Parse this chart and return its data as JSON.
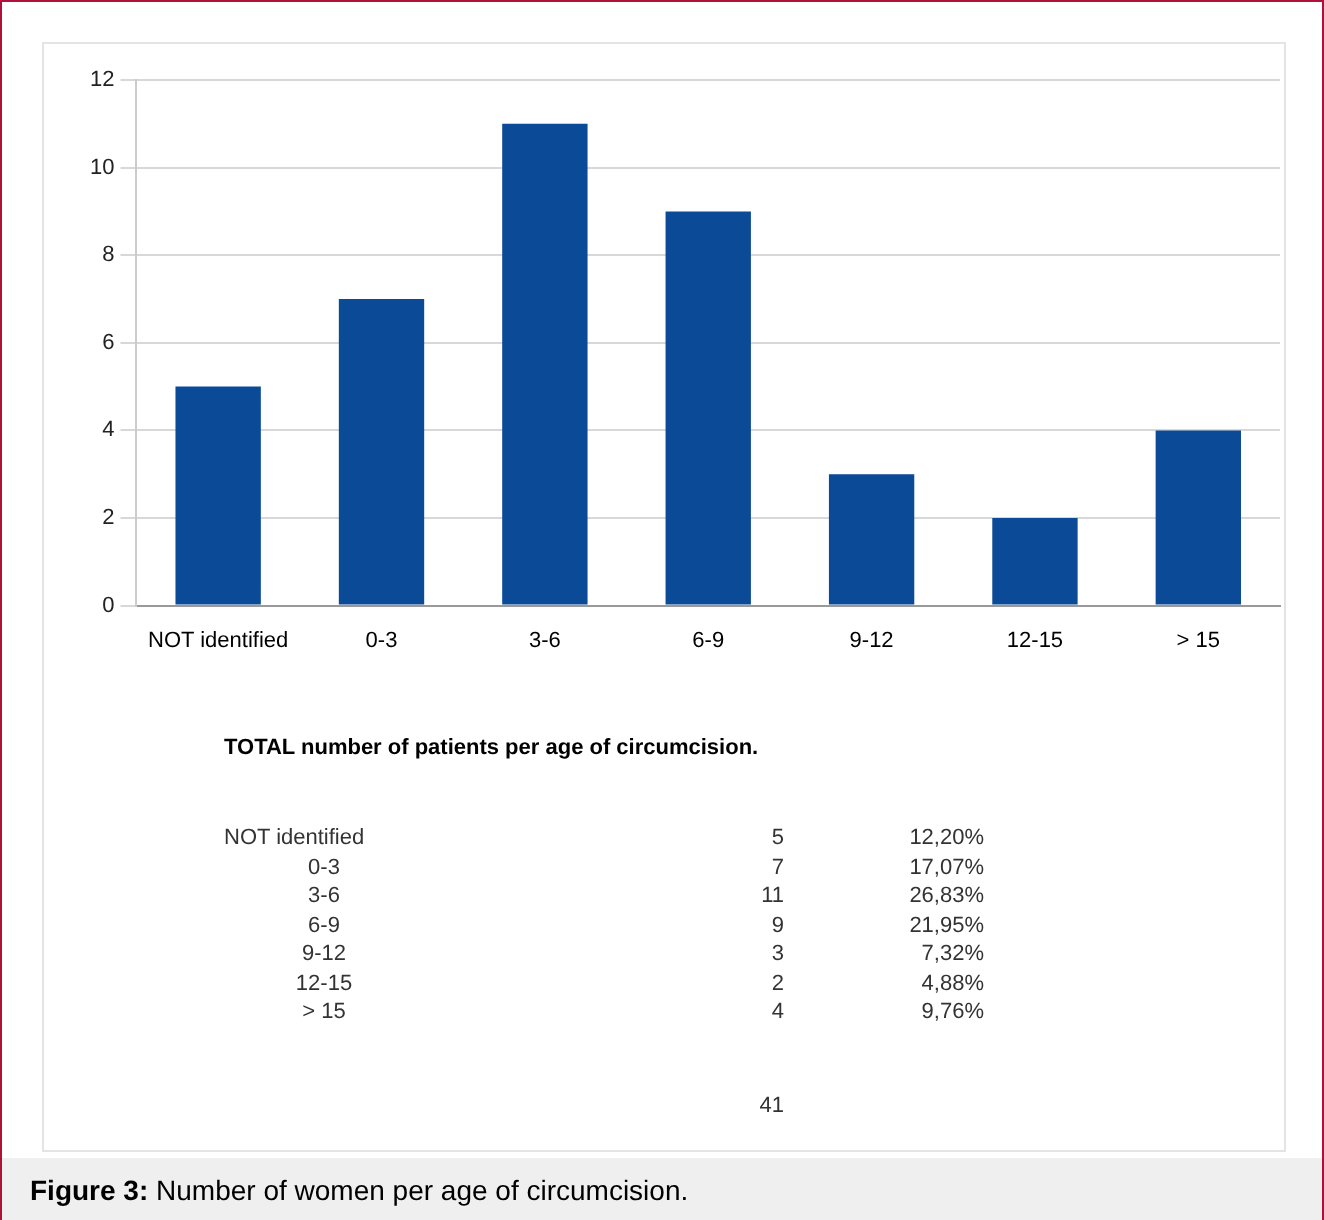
{
  "chart_data": {
    "type": "bar",
    "categories": [
      "NOT identified",
      "0-3",
      "3-6",
      "6-9",
      "9-12",
      "12-15",
      "> 15"
    ],
    "values": [
      5,
      7,
      11,
      9,
      3,
      2,
      4
    ],
    "color": "#0a4a96",
    "ylim": [
      0,
      12
    ],
    "yticks": [
      0,
      2,
      4,
      6,
      8,
      10,
      12
    ],
    "grid": "y",
    "legend": false,
    "annotations": [
      "TOTAL number of patients per age of circumcision.",
      "5",
      "7",
      "11",
      "9",
      "3",
      "2",
      "4",
      "12,20%",
      "17,07%",
      "26,83%",
      "21,95%",
      "7,32%",
      "4,88%",
      "9,76%",
      "41",
      "Figure 3: Number of women per age of circumcision."
    ]
  }
}
